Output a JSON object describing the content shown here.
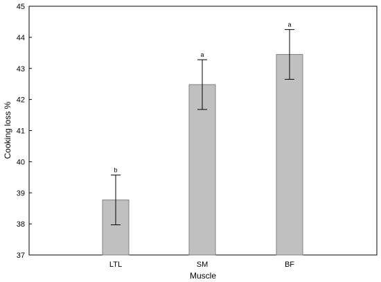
{
  "chart_data": {
    "type": "bar",
    "title": "",
    "xlabel": "Muscle",
    "ylabel": "Cooking loss %",
    "ylim": [
      37,
      45
    ],
    "yticks": [
      37,
      38,
      39,
      40,
      41,
      42,
      43,
      44,
      45
    ],
    "categories": [
      "LTL",
      "SM",
      "BF"
    ],
    "values": [
      38.77,
      42.48,
      43.45
    ],
    "error_low": [
      37.97,
      41.68,
      42.65
    ],
    "error_high": [
      39.57,
      43.28,
      44.25
    ],
    "significance_labels": [
      "b",
      "a",
      "a"
    ],
    "grid": false,
    "legend": "none",
    "colors": {
      "bar_fill": "#c0c0c0",
      "bar_stroke": "#808080",
      "axis": "#000000",
      "error_bar": "#000000"
    }
  }
}
